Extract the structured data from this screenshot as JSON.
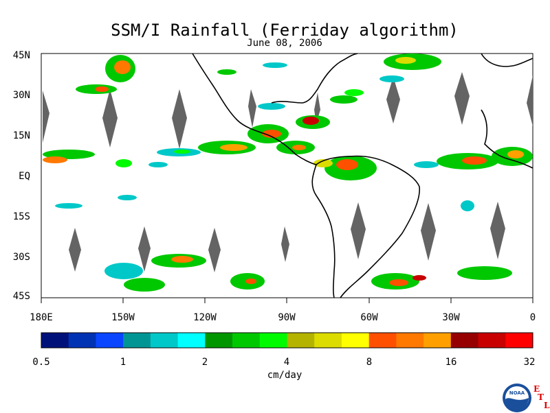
{
  "title": "SSM/I Rainfall (Ferriday algorithm)",
  "date": "June 08, 2006",
  "lat_labels": [
    "45N",
    "30N",
    "15N",
    "EQ",
    "15S",
    "30S",
    "45S"
  ],
  "lon_labels": [
    "180E",
    "150W",
    "120W",
    "90W",
    "60W",
    "30W",
    "0"
  ],
  "colorbar": {
    "colors": [
      "#00127a",
      "#0032b4",
      "#0a46ff",
      "#009595",
      "#00c8c8",
      "#00ffff",
      "#009600",
      "#00c800",
      "#00fa00",
      "#b4b400",
      "#dcdc00",
      "#ffff00",
      "#ff5000",
      "#ff7800",
      "#ffa000",
      "#960000",
      "#c80000",
      "#ff0000"
    ],
    "tick_labels": [
      "0.5",
      "1",
      "2",
      "4",
      "8",
      "16",
      "32"
    ],
    "units": "cm/day"
  },
  "logo": {
    "text": "NOAA",
    "letters": [
      "E",
      "T",
      "L"
    ]
  },
  "land_color": "#646464"
}
